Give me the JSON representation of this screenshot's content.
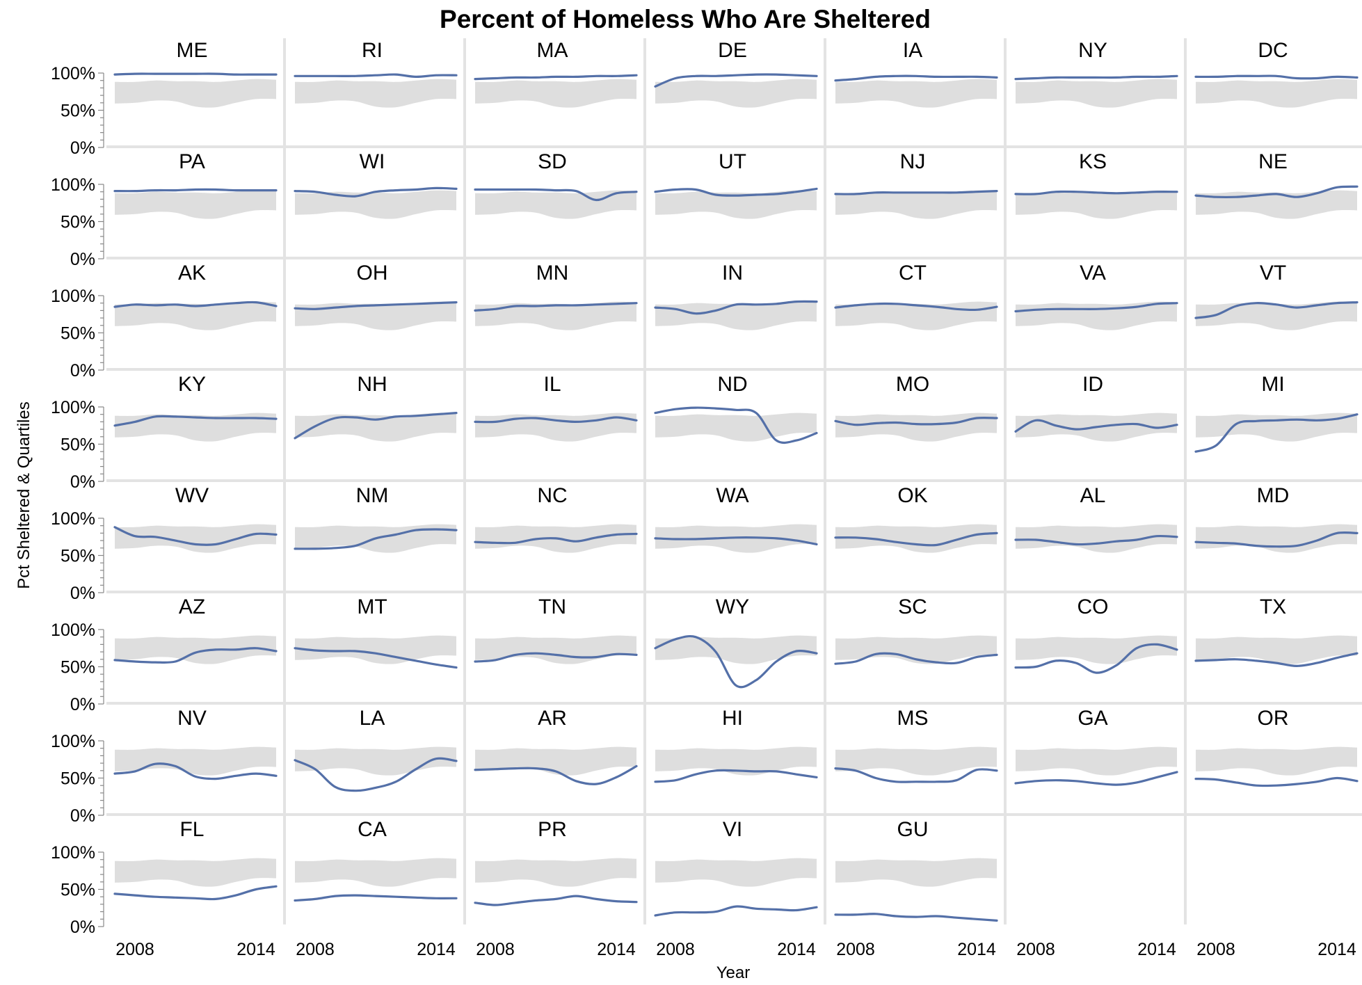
{
  "chart_data": {
    "type": "line",
    "title": "Percent of Homeless Who Are Sheltered",
    "xlabel": "Year",
    "ylabel": "Pct Sheltered & Quartiles",
    "x": [
      2007,
      2008,
      2009,
      2010,
      2011,
      2012,
      2013,
      2014,
      2015
    ],
    "xlim": [
      2007,
      2015
    ],
    "xticks": [
      2008,
      2014
    ],
    "ylim": [
      0,
      100
    ],
    "yticks": [
      0,
      50,
      100
    ],
    "ytick_labels": [
      "0%",
      "50%",
      "100%"
    ],
    "grid": false,
    "colors": {
      "series": "#5470a8",
      "quartile_band": "#dedede"
    },
    "quartile_band": {
      "lower": [
        59,
        60,
        63,
        62,
        55,
        54,
        60,
        65,
        65
      ],
      "upper": [
        88,
        88,
        90,
        89,
        89,
        88,
        90,
        92,
        91
      ]
    },
    "series": [
      {
        "name": "ME",
        "values": [
          98,
          99,
          99,
          99,
          99,
          99,
          98,
          98,
          98
        ]
      },
      {
        "name": "RI",
        "values": [
          96,
          96,
          96,
          96,
          97,
          98,
          95,
          97,
          97
        ]
      },
      {
        "name": "MA",
        "values": [
          92,
          93,
          94,
          94,
          95,
          95,
          96,
          96,
          97
        ]
      },
      {
        "name": "DE",
        "values": [
          82,
          93,
          96,
          96,
          97,
          98,
          98,
          97,
          96
        ]
      },
      {
        "name": "IA",
        "values": [
          90,
          92,
          95,
          96,
          96,
          95,
          95,
          95,
          94
        ]
      },
      {
        "name": "NY",
        "values": [
          92,
          93,
          94,
          94,
          94,
          94,
          95,
          95,
          96
        ]
      },
      {
        "name": "DC",
        "values": [
          95,
          95,
          96,
          96,
          96,
          93,
          93,
          95,
          94
        ]
      },
      {
        "name": "PA",
        "values": [
          91,
          91,
          92,
          92,
          93,
          93,
          92,
          92,
          92
        ]
      },
      {
        "name": "WI",
        "values": [
          91,
          90,
          86,
          84,
          90,
          92,
          93,
          95,
          94
        ]
      },
      {
        "name": "SD",
        "values": [
          93,
          93,
          93,
          93,
          92,
          91,
          79,
          88,
          90
        ]
      },
      {
        "name": "UT",
        "values": [
          90,
          93,
          93,
          86,
          85,
          86,
          87,
          90,
          94
        ]
      },
      {
        "name": "NJ",
        "values": [
          87,
          87,
          89,
          89,
          89,
          89,
          89,
          90,
          91
        ]
      },
      {
        "name": "KS",
        "values": [
          87,
          87,
          90,
          90,
          89,
          88,
          89,
          90,
          90
        ]
      },
      {
        "name": "NE",
        "values": [
          85,
          83,
          83,
          85,
          87,
          83,
          88,
          96,
          97
        ]
      },
      {
        "name": "AK",
        "values": [
          85,
          88,
          87,
          88,
          86,
          88,
          90,
          91,
          86
        ]
      },
      {
        "name": "OH",
        "values": [
          83,
          82,
          84,
          86,
          87,
          88,
          89,
          90,
          91
        ]
      },
      {
        "name": "MN",
        "values": [
          80,
          82,
          86,
          86,
          87,
          87,
          88,
          89,
          90
        ]
      },
      {
        "name": "IN",
        "values": [
          84,
          82,
          76,
          80,
          88,
          88,
          89,
          92,
          92
        ]
      },
      {
        "name": "CT",
        "values": [
          84,
          87,
          89,
          89,
          87,
          85,
          82,
          81,
          85
        ]
      },
      {
        "name": "VA",
        "values": [
          79,
          81,
          82,
          82,
          82,
          83,
          85,
          89,
          90
        ]
      },
      {
        "name": "VT",
        "values": [
          70,
          74,
          86,
          90,
          88,
          84,
          87,
          90,
          91
        ]
      },
      {
        "name": "KY",
        "values": [
          75,
          80,
          87,
          87,
          86,
          85,
          85,
          85,
          84
        ]
      },
      {
        "name": "NH",
        "values": [
          58,
          74,
          85,
          86,
          83,
          87,
          88,
          90,
          92
        ]
      },
      {
        "name": "IL",
        "values": [
          80,
          80,
          84,
          85,
          82,
          80,
          82,
          86,
          82
        ]
      },
      {
        "name": "ND",
        "values": [
          92,
          97,
          99,
          98,
          96,
          92,
          55,
          55,
          65
        ]
      },
      {
        "name": "MO",
        "values": [
          81,
          76,
          78,
          79,
          77,
          77,
          79,
          85,
          85
        ]
      },
      {
        "name": "ID",
        "values": [
          67,
          82,
          75,
          70,
          73,
          76,
          77,
          72,
          76
        ]
      },
      {
        "name": "MI",
        "values": [
          40,
          48,
          77,
          81,
          82,
          83,
          82,
          84,
          90
        ]
      },
      {
        "name": "WV",
        "values": [
          88,
          76,
          75,
          70,
          65,
          65,
          72,
          79,
          78
        ]
      },
      {
        "name": "NM",
        "values": [
          59,
          59,
          60,
          63,
          73,
          78,
          84,
          85,
          84
        ]
      },
      {
        "name": "NC",
        "values": [
          68,
          67,
          67,
          72,
          73,
          69,
          74,
          78,
          79
        ]
      },
      {
        "name": "WA",
        "values": [
          73,
          72,
          72,
          73,
          74,
          74,
          73,
          70,
          65
        ]
      },
      {
        "name": "OK",
        "values": [
          74,
          74,
          72,
          68,
          65,
          64,
          71,
          78,
          80
        ]
      },
      {
        "name": "AL",
        "values": [
          71,
          71,
          68,
          65,
          66,
          69,
          71,
          76,
          75
        ]
      },
      {
        "name": "MD",
        "values": [
          68,
          67,
          66,
          63,
          62,
          63,
          70,
          80,
          80
        ]
      },
      {
        "name": "AZ",
        "values": [
          59,
          57,
          56,
          57,
          69,
          73,
          73,
          75,
          71
        ]
      },
      {
        "name": "MT",
        "values": [
          75,
          72,
          71,
          71,
          68,
          63,
          58,
          53,
          49
        ]
      },
      {
        "name": "TN",
        "values": [
          57,
          59,
          66,
          68,
          66,
          63,
          63,
          67,
          66
        ]
      },
      {
        "name": "WY",
        "values": [
          75,
          87,
          90,
          70,
          25,
          32,
          57,
          71,
          68
        ]
      },
      {
        "name": "SC",
        "values": [
          54,
          57,
          67,
          67,
          60,
          56,
          55,
          63,
          66
        ]
      },
      {
        "name": "CO",
        "values": [
          49,
          50,
          58,
          55,
          42,
          52,
          75,
          80,
          73
        ]
      },
      {
        "name": "TX",
        "values": [
          58,
          59,
          60,
          58,
          55,
          51,
          55,
          62,
          68
        ]
      },
      {
        "name": "NV",
        "values": [
          56,
          59,
          69,
          66,
          52,
          49,
          53,
          56,
          53
        ]
      },
      {
        "name": "LA",
        "values": [
          74,
          62,
          38,
          33,
          37,
          45,
          62,
          76,
          73
        ]
      },
      {
        "name": "AR",
        "values": [
          61,
          62,
          63,
          63,
          59,
          46,
          42,
          51,
          66
        ]
      },
      {
        "name": "HI",
        "values": [
          45,
          47,
          55,
          60,
          60,
          59,
          59,
          55,
          51
        ]
      },
      {
        "name": "MS",
        "values": [
          63,
          60,
          50,
          45,
          45,
          45,
          47,
          61,
          60
        ]
      },
      {
        "name": "GA",
        "values": [
          43,
          46,
          47,
          46,
          43,
          41,
          44,
          51,
          58
        ]
      },
      {
        "name": "OR",
        "values": [
          49,
          48,
          44,
          40,
          40,
          42,
          45,
          50,
          46
        ]
      },
      {
        "name": "FL",
        "values": [
          44,
          42,
          40,
          39,
          38,
          37,
          42,
          50,
          54
        ]
      },
      {
        "name": "CA",
        "values": [
          35,
          37,
          41,
          42,
          41,
          40,
          39,
          38,
          38
        ]
      },
      {
        "name": "PR",
        "values": [
          32,
          29,
          32,
          35,
          37,
          41,
          37,
          34,
          33
        ]
      },
      {
        "name": "VI",
        "values": [
          15,
          19,
          19,
          20,
          27,
          24,
          23,
          22,
          26
        ]
      },
      {
        "name": "GU",
        "values": [
          16,
          16,
          17,
          14,
          13,
          14,
          12,
          10,
          8
        ]
      }
    ]
  }
}
